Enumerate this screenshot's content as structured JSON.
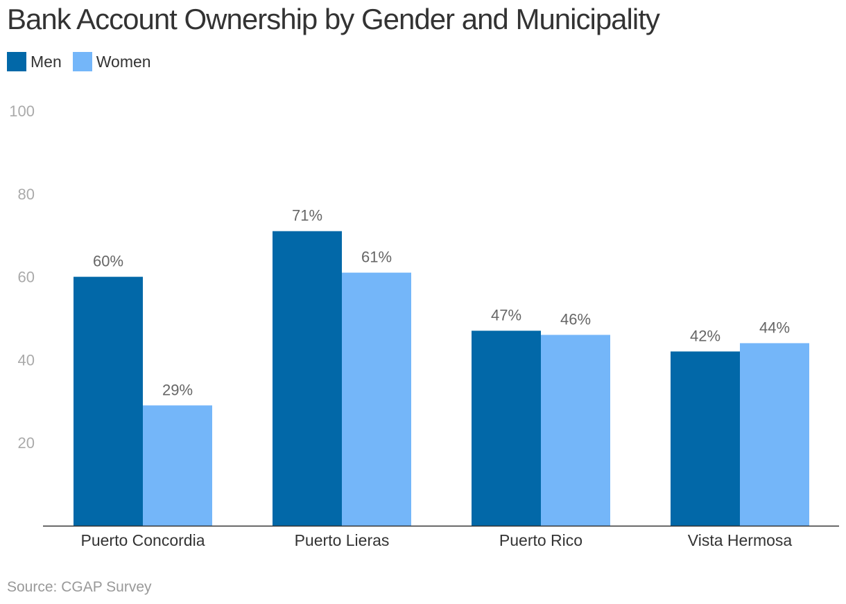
{
  "chart_data": {
    "type": "bar",
    "title": "Bank Account Ownership by Gender and Municipality",
    "categories": [
      "Puerto Concordia",
      "Puerto Lieras",
      "Puerto Rico",
      "Vista Hermosa"
    ],
    "series": [
      {
        "name": "Men",
        "color": "#0268a8",
        "values": [
          60,
          71,
          47,
          42
        ],
        "labels": [
          "60%",
          "71%",
          "47%",
          "42%"
        ]
      },
      {
        "name": "Women",
        "color": "#74b6f9",
        "values": [
          29,
          61,
          46,
          44
        ],
        "labels": [
          "29%",
          "61%",
          "46%",
          "44%"
        ]
      }
    ],
    "yticks": [
      "20",
      "40",
      "60",
      "80",
      "100"
    ],
    "ylim": [
      0,
      100
    ],
    "xlabel": "",
    "ylabel": "",
    "legend_position": "top-left",
    "grid": false
  },
  "source": "Source: CGAP Survey"
}
